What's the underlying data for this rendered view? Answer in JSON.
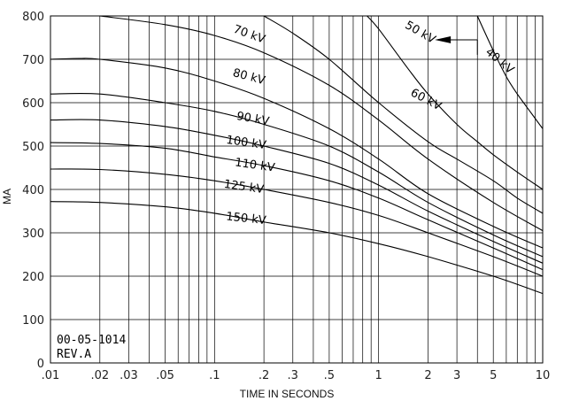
{
  "chart_data": {
    "type": "line",
    "title": "",
    "xlabel": "TIME IN SECONDS",
    "ylabel": "MA",
    "x_scale": "log",
    "xlim": [
      0.01,
      10
    ],
    "ylim": [
      0,
      800
    ],
    "grid": true,
    "x_ticks": [
      {
        "v": 0.01,
        "label": ".01"
      },
      {
        "v": 0.02,
        "label": ".02"
      },
      {
        "v": 0.03,
        "label": ".03"
      },
      {
        "v": 0.05,
        "label": ".05"
      },
      {
        "v": 0.1,
        "label": ".1"
      },
      {
        "v": 0.2,
        "label": ".2"
      },
      {
        "v": 0.3,
        "label": ".3"
      },
      {
        "v": 0.5,
        "label": ".5"
      },
      {
        "v": 1,
        "label": "1"
      },
      {
        "v": 2,
        "label": "2"
      },
      {
        "v": 3,
        "label": "3"
      },
      {
        "v": 5,
        "label": "5"
      },
      {
        "v": 10,
        "label": "10"
      }
    ],
    "y_ticks": [
      0,
      100,
      200,
      300,
      400,
      500,
      600,
      700,
      800
    ],
    "series": [
      {
        "name": "40 kV",
        "x": [
          4.0,
          5,
          6,
          7,
          8,
          10
        ],
        "y": [
          800,
          720,
          660,
          620,
          590,
          540
        ]
      },
      {
        "name": "50 kV",
        "x": [
          0.85,
          1,
          1.5,
          2,
          3,
          4,
          5,
          7,
          10
        ],
        "y": [
          800,
          770,
          680,
          620,
          550,
          510,
          480,
          440,
          400
        ]
      },
      {
        "name": "60 kV",
        "x": [
          0.2,
          0.3,
          0.5,
          1,
          2,
          3,
          5,
          7,
          10
        ],
        "y": [
          800,
          760,
          700,
          600,
          510,
          470,
          420,
          380,
          345
        ]
      },
      {
        "name": "70 kV",
        "x": [
          0.02,
          0.05,
          0.1,
          0.2,
          0.5,
          1,
          2,
          5,
          10
        ],
        "y": [
          800,
          780,
          755,
          715,
          640,
          560,
          470,
          370,
          305
        ]
      },
      {
        "name": "80 kV",
        "x": [
          0.01,
          0.015,
          0.02,
          0.05,
          0.1,
          0.2,
          0.5,
          1,
          2,
          5,
          10
        ],
        "y": [
          700,
          702,
          700,
          680,
          650,
          610,
          540,
          470,
          390,
          315,
          265
        ]
      },
      {
        "name": "90 kV",
        "x": [
          0.01,
          0.02,
          0.05,
          0.1,
          0.2,
          0.5,
          1,
          2,
          5,
          10
        ],
        "y": [
          620,
          620,
          600,
          580,
          550,
          500,
          440,
          370,
          295,
          245
        ]
      },
      {
        "name": "100 kV",
        "x": [
          0.01,
          0.02,
          0.05,
          0.1,
          0.2,
          0.5,
          1,
          2,
          5,
          10
        ],
        "y": [
          560,
          560,
          545,
          525,
          500,
          460,
          410,
          350,
          280,
          230
        ]
      },
      {
        "name": "110 kV",
        "x": [
          0.01,
          0.02,
          0.05,
          0.1,
          0.2,
          0.5,
          1,
          2,
          5,
          10
        ],
        "y": [
          508,
          506,
          495,
          475,
          455,
          420,
          380,
          330,
          265,
          215
        ]
      },
      {
        "name": "125 kV",
        "x": [
          0.01,
          0.02,
          0.05,
          0.1,
          0.2,
          0.5,
          1,
          2,
          5,
          10
        ],
        "y": [
          447,
          446,
          435,
          420,
          400,
          370,
          340,
          300,
          245,
          200
        ]
      },
      {
        "name": "150 kV",
        "x": [
          0.01,
          0.02,
          0.05,
          0.1,
          0.2,
          0.5,
          1,
          2,
          5,
          10
        ],
        "y": [
          372,
          370,
          360,
          345,
          325,
          300,
          275,
          245,
          200,
          160
        ]
      }
    ],
    "annotations": [
      {
        "text": "00-05-1014",
        "type": "stamp"
      },
      {
        "text": "REV.A",
        "type": "stamp"
      }
    ],
    "arrow": {
      "from_x": 4.0,
      "y": 745,
      "to_x": 2.2
    }
  }
}
